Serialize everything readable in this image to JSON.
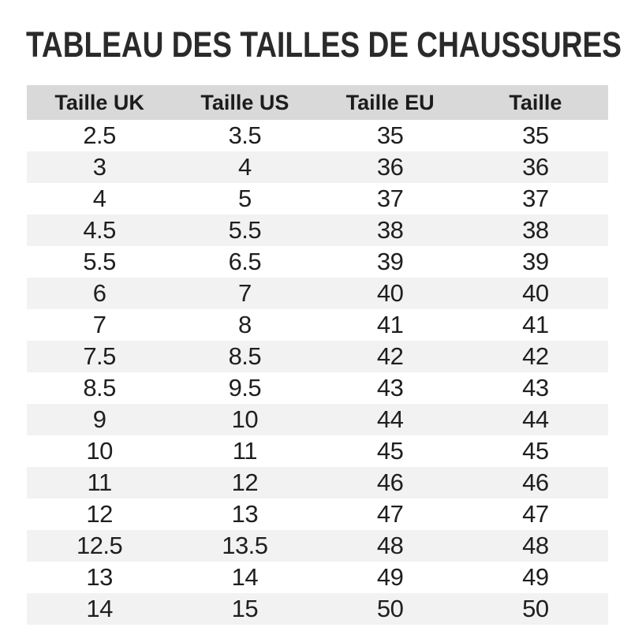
{
  "page": {
    "title": "TABLEAU DES TAILLES DE CHAUSSURES"
  },
  "colors": {
    "page_bg": "#ffffff",
    "header_bg": "#d9d9d9",
    "stripe_bg": "#f2f2f2",
    "title_color": "#2a2a2a",
    "text_color": "#1f1f1f"
  },
  "table": {
    "columns": [
      "Taille UK",
      "Taille US",
      "Taille EU",
      "Taille"
    ],
    "rows": [
      [
        "2.5",
        "3.5",
        "35",
        "35"
      ],
      [
        "3",
        "4",
        "36",
        "36"
      ],
      [
        "4",
        "5",
        "37",
        "37"
      ],
      [
        "4.5",
        "5.5",
        "38",
        "38"
      ],
      [
        "5.5",
        "6.5",
        "39",
        "39"
      ],
      [
        "6",
        "7",
        "40",
        "40"
      ],
      [
        "7",
        "8",
        "41",
        "41"
      ],
      [
        "7.5",
        "8.5",
        "42",
        "42"
      ],
      [
        "8.5",
        "9.5",
        "43",
        "43"
      ],
      [
        "9",
        "10",
        "44",
        "44"
      ],
      [
        "10",
        "11",
        "45",
        "45"
      ],
      [
        "11",
        "12",
        "46",
        "46"
      ],
      [
        "12",
        "13",
        "47",
        "47"
      ],
      [
        "12.5",
        "13.5",
        "48",
        "48"
      ],
      [
        "13",
        "14",
        "49",
        "49"
      ],
      [
        "14",
        "15",
        "50",
        "50"
      ]
    ]
  }
}
